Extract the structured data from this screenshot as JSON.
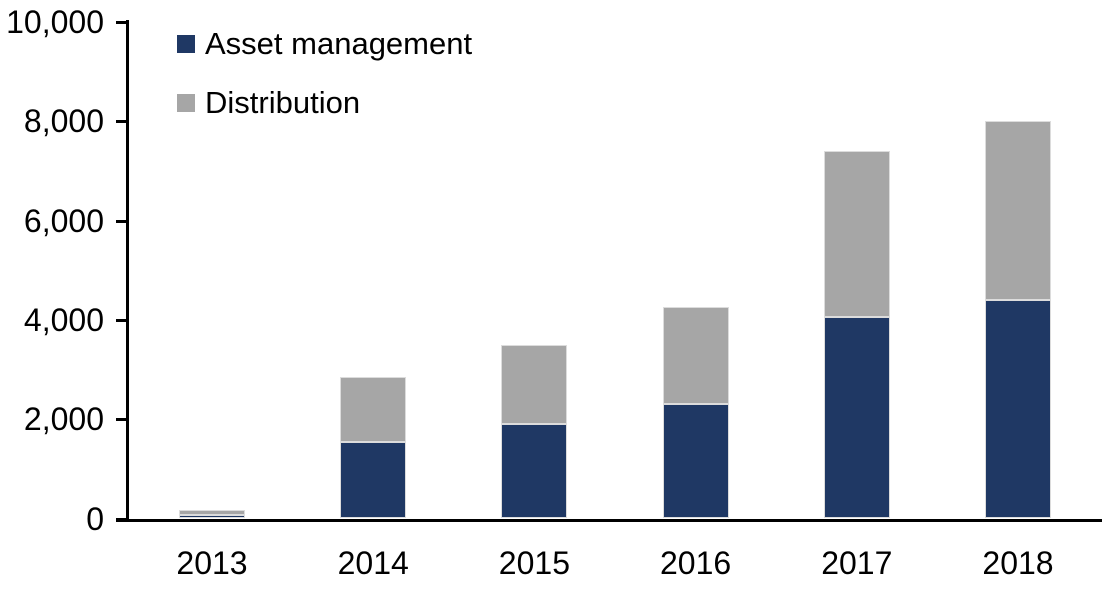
{
  "chart_data": {
    "type": "bar",
    "stacked": true,
    "title": "",
    "xlabel": "",
    "ylabel": "",
    "categories": [
      "2013",
      "2014",
      "2015",
      "2016",
      "2017",
      "2018"
    ],
    "series": [
      {
        "name": "Asset management",
        "color": "#1F3864",
        "values": [
          80,
          1550,
          1900,
          2300,
          4050,
          4400
        ]
      },
      {
        "name": "Distribution",
        "color": "#A6A6A6",
        "values": [
          100,
          1300,
          1600,
          1950,
          3350,
          3600
        ]
      }
    ],
    "totals": [
      180,
      2850,
      3500,
      4250,
      7400,
      8000
    ],
    "ylim": [
      0,
      10000
    ],
    "y_ticks": [
      {
        "value": 0,
        "label": "0"
      },
      {
        "value": 2000,
        "label": "2,000"
      },
      {
        "value": 4000,
        "label": "4,000"
      },
      {
        "value": 6000,
        "label": "6,000"
      },
      {
        "value": 8000,
        "label": "8,000"
      },
      {
        "value": 10000,
        "label": "10,000"
      }
    ],
    "grid": false,
    "legend_position": "top-left-inside"
  },
  "colors": {
    "axis": "#000000",
    "background": "#FFFFFF",
    "asset_management": "#1F3864",
    "distribution": "#A6A6A6",
    "bar_outline": "#DCDCDC",
    "text": "#000000"
  }
}
